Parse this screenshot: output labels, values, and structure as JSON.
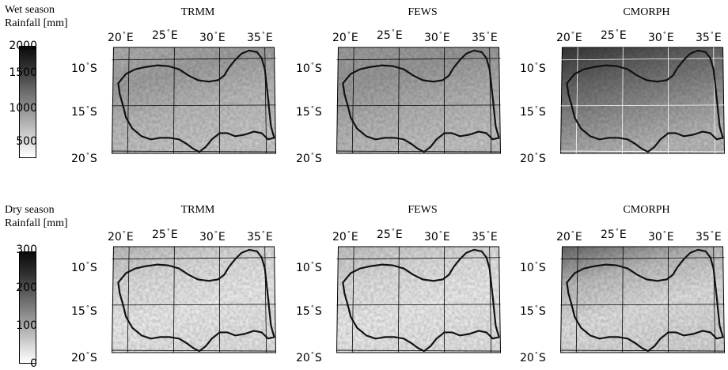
{
  "legends": [
    {
      "title_line1": "Wet season",
      "title_line2": "Rainfall [mm]",
      "ticks": [
        "2000",
        "1500",
        "1000",
        "500"
      ]
    },
    {
      "title_line1": "Dry season",
      "title_line2": "Rainfall [mm]",
      "ticks": [
        "300",
        "200",
        "100",
        "0"
      ]
    }
  ],
  "panel_titles": [
    "TRMM",
    "FEWS",
    "CMORPH",
    "TRMM",
    "FEWS",
    "CMORPH"
  ],
  "lon_labels": [
    "20",
    "25",
    "30",
    "35"
  ],
  "lon_suffix": "E",
  "lat_labels": [
    "10",
    "15",
    "20"
  ],
  "lat_suffix": "S",
  "colors": {
    "boundary": "#111111",
    "grid": "#000000",
    "cmorph_grid": "#ffffff"
  }
}
